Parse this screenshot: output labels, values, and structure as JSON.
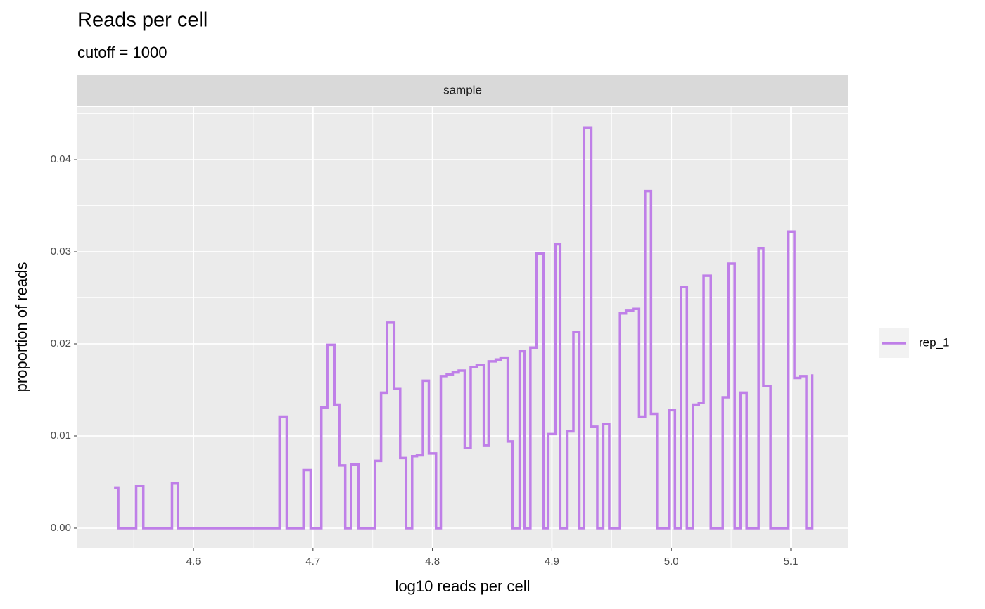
{
  "chart_data": {
    "type": "step",
    "title": "Reads per cell",
    "subtitle": "cutoff = 1000",
    "facet": "sample",
    "x_label": "log10 reads per cell",
    "y_label": "proportion of reads",
    "xlim": [
      4.5028,
      5.1477
    ],
    "ylim": [
      -0.00214,
      0.04573
    ],
    "xticks": [
      4.6,
      4.7,
      4.8,
      4.9,
      {
        "value": 5.0,
        "label": "5.0"
      },
      5.1
    ],
    "yticks": [
      {
        "value": 0,
        "label": "0.00"
      },
      0.01,
      0.02,
      0.03,
      0.04
    ],
    "grid": true,
    "series": [
      {
        "name": "rep_1",
        "color": "#bf7fe8",
        "x": [
          4.5335,
          4.537,
          4.552,
          4.558,
          4.582,
          4.587,
          4.672,
          4.678,
          4.692,
          4.698,
          4.707,
          4.712,
          4.718,
          4.722,
          4.727,
          4.732,
          4.738,
          4.752,
          4.757,
          4.762,
          4.768,
          4.773,
          4.778,
          4.783,
          4.787,
          4.792,
          4.797,
          4.803,
          4.807,
          4.812,
          4.817,
          4.822,
          4.827,
          4.832,
          4.837,
          4.843,
          4.847,
          4.853,
          4.857,
          4.863,
          4.867,
          4.873,
          4.877,
          4.882,
          4.887,
          4.893,
          4.897,
          4.903,
          4.907,
          4.913,
          4.918,
          4.923,
          4.927,
          4.933,
          4.938,
          4.943,
          4.948,
          4.957,
          4.962,
          4.968,
          4.973,
          4.978,
          4.983,
          4.988,
          4.998,
          5.003,
          5.008,
          5.013,
          5.018,
          5.023,
          5.027,
          5.033,
          5.043,
          5.048,
          5.053,
          5.058,
          5.063,
          5.073,
          5.077,
          5.083,
          5.098,
          5.103,
          5.108,
          5.113,
          5.118
        ],
        "values": [
          0.0044,
          0,
          0.0046,
          0,
          0.0049,
          0,
          0.0121,
          0,
          0.0063,
          0,
          0.0131,
          0.0199,
          0.0134,
          0.0068,
          0,
          0.0069,
          0,
          0.0073,
          0.0147,
          0.0223,
          0.0151,
          0.0076,
          0,
          0.0078,
          0.0079,
          0.016,
          0.0081,
          0,
          0.0165,
          0.0167,
          0.0169,
          0.0171,
          0.0087,
          0.0175,
          0.0177,
          0.009,
          0.0181,
          0.0183,
          0.0185,
          0.0094,
          0,
          0.0192,
          0,
          0.0196,
          0.0298,
          0,
          0.0102,
          0.0308,
          0,
          0.0105,
          0.0213,
          0,
          0.0435,
          0.011,
          0,
          0.0113,
          0,
          0.0233,
          0.0236,
          0.0238,
          0.0121,
          0.0366,
          0.0124,
          0,
          0.0128,
          0,
          0.0262,
          0,
          0.0134,
          0.0136,
          0.0274,
          0,
          0.0142,
          0.0287,
          0,
          0.0147,
          0,
          0.0304,
          0.0154,
          0,
          0.0322,
          0.0163,
          0.0165,
          0,
          0.0167
        ]
      }
    ]
  }
}
